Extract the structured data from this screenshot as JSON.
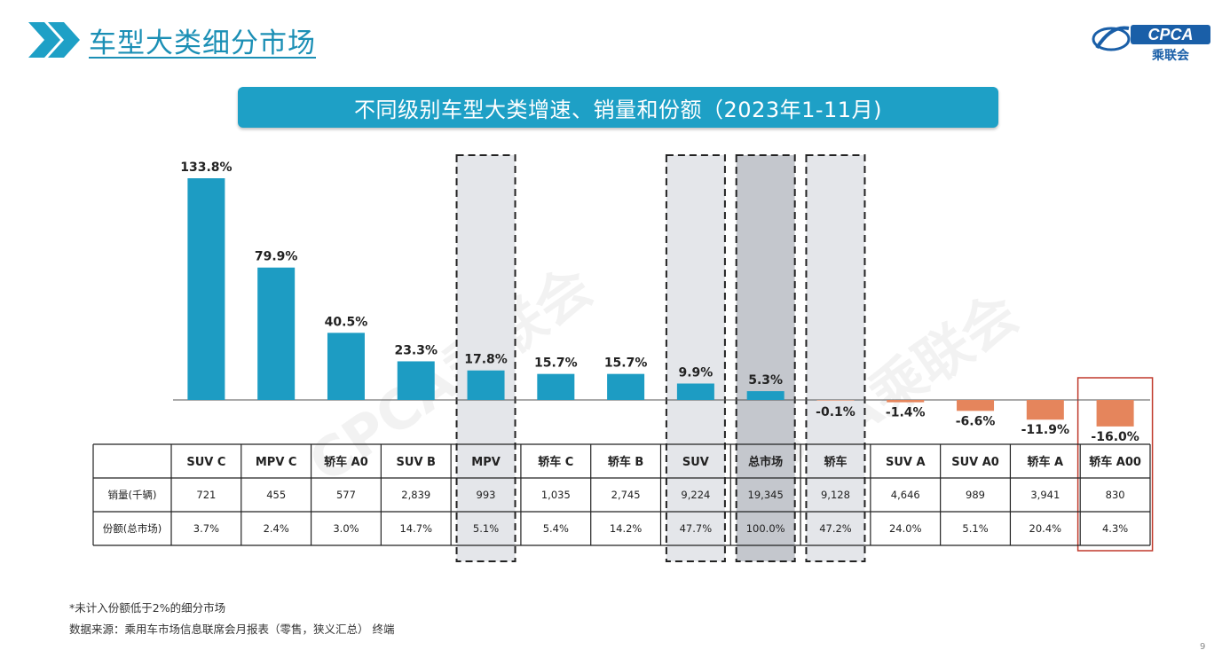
{
  "page": {
    "title": "车型大类细分市场",
    "banner": "不同级别车型大类增速、销量和份额（2023年1-11月)",
    "logo_text": "CPCA",
    "logo_subtext": "乘联会",
    "watermark": "CPCA乘联会",
    "footnote_1": "*未计入份额低于2%的细分市场",
    "footnote_2": "数据来源：乘用车市场信息联席会月报表（零售，狭义汇总）  终端",
    "page_number": "9"
  },
  "colors": {
    "accent": "#1ea0c6",
    "bar_positive": "#1d9cc3",
    "bar_negative": "#e5855c",
    "highlight_fill": "#e4e6ea",
    "highlight_dark_fill": "#c4c7cd",
    "red_box": "#c0392b"
  },
  "chart_data": {
    "type": "bar",
    "title": "不同级别车型大类增速、销量和份额（2023年1-11月)",
    "categories": [
      "SUV C",
      "MPV C",
      "轿车 A0",
      "SUV B",
      "MPV",
      "轿车 C",
      "轿车 B",
      "SUV",
      "总市场",
      "轿车",
      "SUV A",
      "SUV A0",
      "轿车 A",
      "轿车 A00"
    ],
    "values": [
      133.8,
      79.9,
      40.5,
      23.3,
      17.8,
      15.7,
      15.7,
      9.9,
      5.3,
      -0.1,
      -1.4,
      -6.6,
      -11.9,
      -16.0
    ],
    "value_labels": [
      "133.8%",
      "79.9%",
      "40.5%",
      "23.3%",
      "17.8%",
      "15.7%",
      "15.7%",
      "9.9%",
      "5.3%",
      "-0.1%",
      "-1.4%",
      "-6.6%",
      "-11.9%",
      "-16.0%"
    ],
    "unit": "%",
    "highlighted_categories": [
      "MPV",
      "SUV",
      "总市场",
      "轿车"
    ],
    "emphasized_category": "总市场",
    "boxed_category": "轿车 A00",
    "table": {
      "row_headers": [
        "销量(千辆)",
        "份额(总市场)"
      ],
      "rows": [
        [
          "721",
          "455",
          "577",
          "2,839",
          "993",
          "1,035",
          "2,745",
          "9,224",
          "19,345",
          "9,128",
          "4,646",
          "989",
          "3,941",
          "830"
        ],
        [
          "3.7%",
          "2.4%",
          "3.0%",
          "14.7%",
          "5.1%",
          "5.4%",
          "14.2%",
          "47.7%",
          "100.0%",
          "47.2%",
          "24.0%",
          "5.1%",
          "20.4%",
          "4.3%"
        ]
      ]
    }
  }
}
